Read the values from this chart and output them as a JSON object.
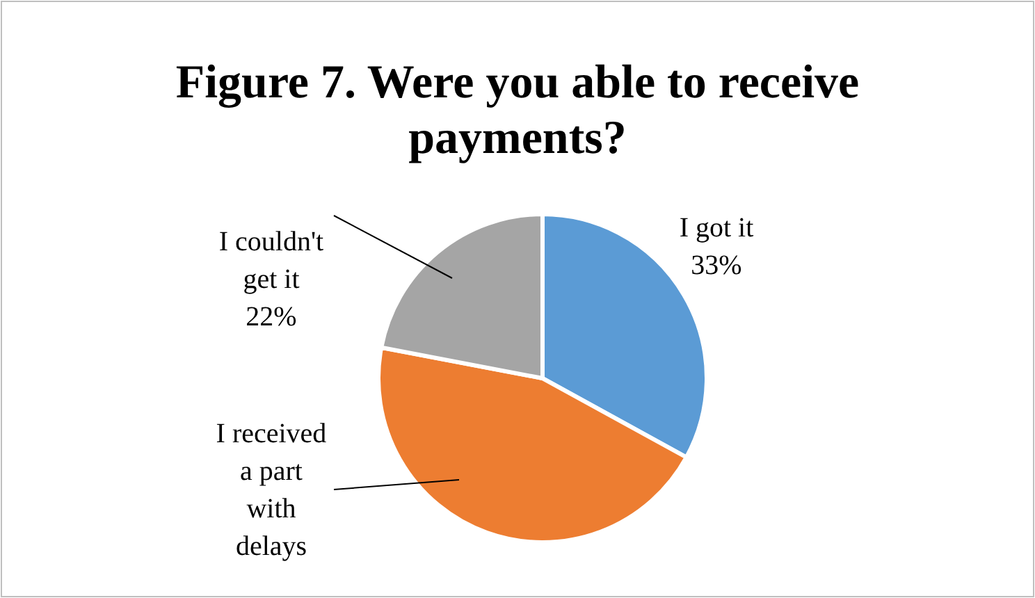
{
  "chart_data": {
    "type": "pie",
    "title": "Figure 7. Were you able to receive payments?",
    "categories": [
      "I got it",
      "I received a part with delays",
      "I couldn't get it"
    ],
    "values": [
      33,
      45,
      22
    ],
    "colors": [
      "#5b9bd5",
      "#ed7d31",
      "#a5a5a5"
    ],
    "value_labels": [
      "33%",
      null,
      "22%"
    ]
  }
}
